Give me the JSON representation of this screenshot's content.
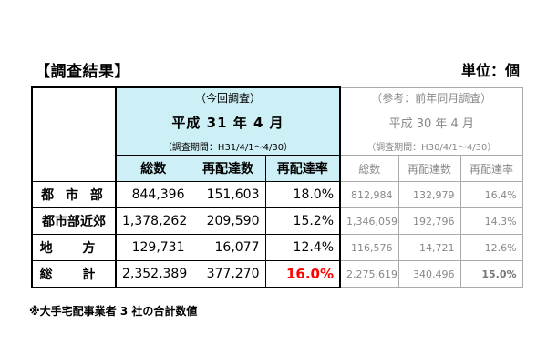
{
  "title": "【調査結果】",
  "unit": "単位：個",
  "current": {
    "line1": "（今回調査）",
    "line2": "平成 31 年 4 月",
    "line3": "（調査期間：H31/4/1～4/30）",
    "columns": [
      "総数",
      "再配達数",
      "再配達率"
    ]
  },
  "reference": {
    "line1": "（参考：前年同月調査）",
    "line2": "平成 30 年 4 月",
    "line3": "（調査期間：H30/4/1～4/30）",
    "columns": [
      "総数",
      "再配達数",
      "再配達率"
    ]
  },
  "rows": [
    {
      "label": "都 市 部",
      "cur": [
        "844,396",
        "151,603",
        "18.0%"
      ],
      "ref": [
        "812,984",
        "132,979",
        "16.4%"
      ]
    },
    {
      "label": "都市部近郊",
      "cur": [
        "1,378,262",
        "209,590",
        "15.2%"
      ],
      "ref": [
        "1,346,059",
        "192,796",
        "14.3%"
      ]
    },
    {
      "label": "地 方",
      "cur": [
        "129,731",
        "16,077",
        "12.4%"
      ],
      "ref": [
        "116,576",
        "14,721",
        "12.6%"
      ]
    },
    {
      "label": "総 計",
      "cur": [
        "2,352,389",
        "377,270",
        "16.0%"
      ],
      "ref": [
        "2,275,619",
        "340,496",
        "15.0%"
      ]
    }
  ],
  "note": "※大手宅配事業者 3 社の合計数値",
  "colors": {
    "header_bg": "#cdeff6",
    "highlight": "#ff0000",
    "ref_text": "#888888"
  }
}
